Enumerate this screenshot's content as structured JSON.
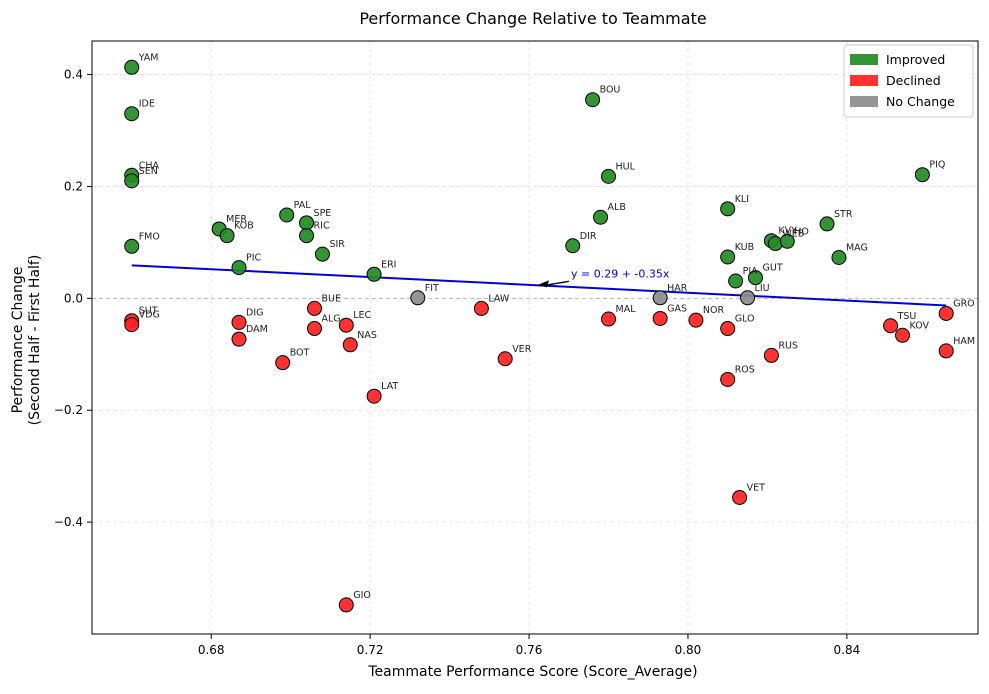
{
  "chart_data": {
    "type": "scatter",
    "title": "Performance Change Relative to Teammate",
    "xlabel": "Teammate Performance Score (Score_Average)",
    "ylabel_lines": [
      "Performance Change",
      "(Second Half - First Half)"
    ],
    "xlim": [
      0.65,
      0.873
    ],
    "ylim": [
      -0.6,
      0.46
    ],
    "xticks": [
      0.68,
      0.72,
      0.76,
      0.8,
      0.84
    ],
    "xtick_labels": [
      "0.68",
      "0.72",
      "0.76",
      "0.80",
      "0.84"
    ],
    "yticks": [
      -0.4,
      -0.2,
      0.0,
      0.2,
      0.4
    ],
    "ytick_labels": [
      "−0.4",
      "−0.2",
      "0.0",
      "0.2",
      "0.4"
    ],
    "grid": true,
    "legend_position": "top-right",
    "categories": [
      {
        "key": "improved",
        "label": "Improved",
        "color": "#228B22"
      },
      {
        "key": "declined",
        "label": "Declined",
        "color": "#FF2020"
      },
      {
        "key": "nochange",
        "label": "No Change",
        "color": "#8C8C8C"
      }
    ],
    "trendline": {
      "intercept": 0.29,
      "slope": -0.35,
      "x_range": [
        0.66,
        0.865
      ],
      "label": "y = 0.29 + -0.35x",
      "color": "#0000DD"
    },
    "points": [
      {
        "label": "YAM",
        "x": 0.66,
        "y": 0.413,
        "cat": "improved"
      },
      {
        "label": "IDE",
        "x": 0.66,
        "y": 0.33,
        "cat": "improved"
      },
      {
        "label": "CHA",
        "x": 0.66,
        "y": 0.22,
        "cat": "improved"
      },
      {
        "label": "SEN",
        "x": 0.66,
        "y": 0.21,
        "cat": "improved"
      },
      {
        "label": "FMO",
        "x": 0.66,
        "y": 0.093,
        "cat": "improved"
      },
      {
        "label": "SUT",
        "x": 0.66,
        "y": -0.04,
        "cat": "declined"
      },
      {
        "label": "VDG",
        "x": 0.66,
        "y": -0.047,
        "cat": "declined"
      },
      {
        "label": "MER",
        "x": 0.682,
        "y": 0.124,
        "cat": "improved"
      },
      {
        "label": "KOB",
        "x": 0.684,
        "y": 0.112,
        "cat": "improved"
      },
      {
        "label": "PIC",
        "x": 0.687,
        "y": 0.055,
        "cat": "improved"
      },
      {
        "label": "DIG",
        "x": 0.687,
        "y": -0.043,
        "cat": "declined"
      },
      {
        "label": "DAM",
        "x": 0.687,
        "y": -0.073,
        "cat": "declined"
      },
      {
        "label": "BOT",
        "x": 0.698,
        "y": -0.115,
        "cat": "declined"
      },
      {
        "label": "PAL",
        "x": 0.699,
        "y": 0.149,
        "cat": "improved"
      },
      {
        "label": "SPE",
        "x": 0.704,
        "y": 0.135,
        "cat": "improved"
      },
      {
        "label": "RIC",
        "x": 0.704,
        "y": 0.112,
        "cat": "improved"
      },
      {
        "label": "SIR",
        "x": 0.708,
        "y": 0.079,
        "cat": "improved"
      },
      {
        "label": "BUE",
        "x": 0.706,
        "y": -0.018,
        "cat": "declined"
      },
      {
        "label": "ALG",
        "x": 0.706,
        "y": -0.054,
        "cat": "declined"
      },
      {
        "label": "LEC",
        "x": 0.714,
        "y": -0.048,
        "cat": "declined"
      },
      {
        "label": "NAS",
        "x": 0.715,
        "y": -0.083,
        "cat": "declined"
      },
      {
        "label": "GIO",
        "x": 0.714,
        "y": -0.548,
        "cat": "declined"
      },
      {
        "label": "ERI",
        "x": 0.721,
        "y": 0.043,
        "cat": "improved"
      },
      {
        "label": "LAT",
        "x": 0.721,
        "y": -0.175,
        "cat": "declined"
      },
      {
        "label": "FIT",
        "x": 0.732,
        "y": 0.001,
        "cat": "nochange"
      },
      {
        "label": "LAW",
        "x": 0.748,
        "y": -0.018,
        "cat": "declined"
      },
      {
        "label": "VER",
        "x": 0.754,
        "y": -0.108,
        "cat": "declined"
      },
      {
        "label": "DIR",
        "x": 0.771,
        "y": 0.094,
        "cat": "improved"
      },
      {
        "label": "BOU",
        "x": 0.776,
        "y": 0.355,
        "cat": "improved"
      },
      {
        "label": "ALB",
        "x": 0.778,
        "y": 0.145,
        "cat": "improved"
      },
      {
        "label": "HUL",
        "x": 0.78,
        "y": 0.218,
        "cat": "improved"
      },
      {
        "label": "MAL",
        "x": 0.78,
        "y": -0.037,
        "cat": "declined"
      },
      {
        "label": "HAR",
        "x": 0.793,
        "y": 0.001,
        "cat": "nochange"
      },
      {
        "label": "GAS",
        "x": 0.793,
        "y": -0.036,
        "cat": "declined"
      },
      {
        "label": "NOR",
        "x": 0.802,
        "y": -0.039,
        "cat": "declined"
      },
      {
        "label": "KLI",
        "x": 0.81,
        "y": 0.16,
        "cat": "improved"
      },
      {
        "label": "KUB",
        "x": 0.81,
        "y": 0.074,
        "cat": "improved"
      },
      {
        "label": "GLO",
        "x": 0.81,
        "y": -0.054,
        "cat": "declined"
      },
      {
        "label": "ROS",
        "x": 0.81,
        "y": -0.145,
        "cat": "declined"
      },
      {
        "label": "PIA",
        "x": 0.812,
        "y": 0.031,
        "cat": "improved"
      },
      {
        "label": "VET",
        "x": 0.813,
        "y": -0.356,
        "cat": "declined"
      },
      {
        "label": "LIU",
        "x": 0.815,
        "y": 0.001,
        "cat": "nochange"
      },
      {
        "label": "GUT",
        "x": 0.817,
        "y": 0.037,
        "cat": "improved"
      },
      {
        "label": "KVY",
        "x": 0.821,
        "y": 0.103,
        "cat": "improved"
      },
      {
        "label": "RUS",
        "x": 0.821,
        "y": -0.102,
        "cat": "declined"
      },
      {
        "label": "WEB",
        "x": 0.822,
        "y": 0.098,
        "cat": "improved"
      },
      {
        "label": "HO",
        "x": 0.825,
        "y": 0.102,
        "cat": "improved"
      },
      {
        "label": "STR",
        "x": 0.835,
        "y": 0.133,
        "cat": "improved"
      },
      {
        "label": "MAG",
        "x": 0.838,
        "y": 0.073,
        "cat": "improved"
      },
      {
        "label": "TSU",
        "x": 0.851,
        "y": -0.049,
        "cat": "declined"
      },
      {
        "label": "KOV",
        "x": 0.854,
        "y": -0.066,
        "cat": "declined"
      },
      {
        "label": "PIQ",
        "x": 0.859,
        "y": 0.221,
        "cat": "improved"
      },
      {
        "label": "GRO",
        "x": 0.865,
        "y": -0.027,
        "cat": "declined"
      },
      {
        "label": "HAM",
        "x": 0.865,
        "y": -0.094,
        "cat": "declined"
      }
    ]
  }
}
